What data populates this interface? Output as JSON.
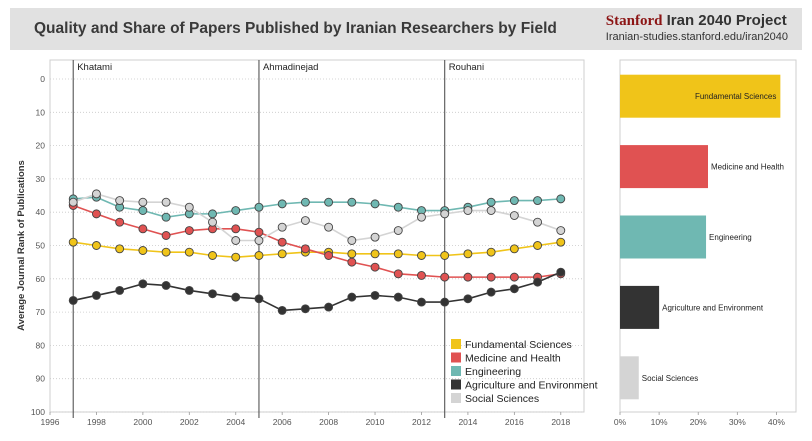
{
  "header": {
    "title": "Quality and Share of Papers Published by Iranian Researchers by Field",
    "brand_stanford": "Stanford",
    "brand_rest": " Iran 2040 Project",
    "brand_url": "Iranian-studies.stanford.edu/iran2040"
  },
  "chart_data": [
    {
      "type": "line",
      "xlabel": "",
      "ylabel": "Average Journal Rank of Publications",
      "ylim": [
        0,
        100
      ],
      "y_inverted": true,
      "xlim": [
        1996,
        2019
      ],
      "x_ticks": [
        1996,
        1998,
        2000,
        2002,
        2004,
        2006,
        2008,
        2010,
        2012,
        2014,
        2016,
        2018
      ],
      "y_ticks": [
        0,
        10,
        20,
        30,
        40,
        50,
        60,
        70,
        80,
        90,
        100
      ],
      "grid": true,
      "legend_position": "bottom-right",
      "annotations": [
        {
          "label": "Khatami",
          "x": 1997
        },
        {
          "label": "Ahmadinejad",
          "x": 2005
        },
        {
          "label": "Rouhani",
          "x": 2013
        }
      ],
      "x": [
        1997,
        1998,
        1999,
        2000,
        2001,
        2002,
        2003,
        2004,
        2005,
        2006,
        2007,
        2008,
        2009,
        2010,
        2011,
        2012,
        2013,
        2014,
        2015,
        2016,
        2017,
        2018
      ],
      "series": [
        {
          "name": "Fundamental Sciences",
          "color": "#f0c419",
          "values": [
            49,
            50,
            51,
            51.5,
            52,
            52,
            53,
            53.5,
            53,
            52.5,
            52,
            52,
            52.5,
            52.5,
            52.5,
            53,
            53,
            52.5,
            52,
            51,
            50,
            49
          ]
        },
        {
          "name": "Medicine and Health",
          "color": "#e05252",
          "values": [
            38,
            40.5,
            43,
            45,
            47,
            45.5,
            45,
            45,
            46,
            49,
            51,
            53,
            55,
            56.5,
            58.5,
            59,
            59.5,
            59.5,
            59.5,
            59.5,
            59.5,
            58.5
          ]
        },
        {
          "name": "Engineering",
          "color": "#6fb8b2",
          "values": [
            36,
            35.5,
            38.5,
            39.5,
            41.5,
            40.5,
            40.5,
            39.5,
            38.5,
            37.5,
            37,
            37,
            37,
            37.5,
            38.5,
            39.5,
            39.5,
            38.5,
            37,
            36.5,
            36.5,
            36
          ]
        },
        {
          "name": "Agriculture and Environment",
          "color": "#333333",
          "values": [
            66.5,
            65,
            63.5,
            61.5,
            62,
            63.5,
            64.5,
            65.5,
            66,
            69.5,
            69,
            68.5,
            65.5,
            65,
            65.5,
            67,
            67,
            66,
            64,
            63,
            61,
            58
          ]
        },
        {
          "name": "Social Sciences",
          "color": "#d4d4d4",
          "values": [
            37,
            34.5,
            36.5,
            37,
            37,
            38.5,
            43,
            48.5,
            48.5,
            44.5,
            42.5,
            44.5,
            48.5,
            47.5,
            45.5,
            41.5,
            40.5,
            39.5,
            39.5,
            41,
            43,
            45.5
          ]
        }
      ]
    },
    {
      "type": "bar",
      "orientation": "horizontal",
      "x_ticks": [
        "0%",
        "10%",
        "20%",
        "30%",
        "40%"
      ],
      "xlim": [
        0,
        0.45
      ],
      "categories": [
        "Fundamental Sciences",
        "Medicine and Health",
        "Engineering",
        "Agriculture and Environment",
        "Social Sciences"
      ],
      "values": [
        0.41,
        0.225,
        0.22,
        0.1,
        0.048
      ],
      "colors": [
        "#f0c419",
        "#e05252",
        "#6fb8b2",
        "#333333",
        "#d4d4d4"
      ]
    }
  ]
}
